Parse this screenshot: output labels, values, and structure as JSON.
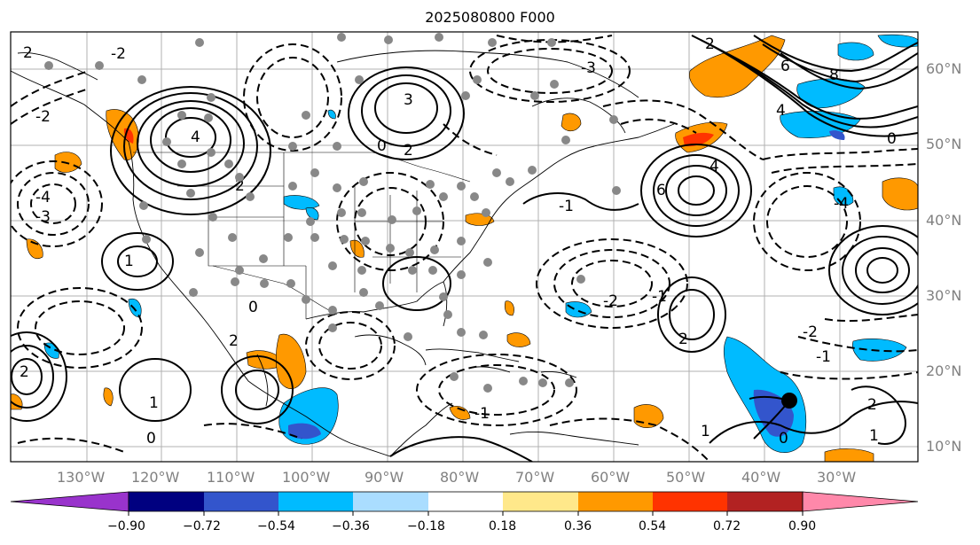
{
  "title": "2025080800 F000",
  "lat_labels": [
    "60°N",
    "50°N",
    "40°N",
    "30°N",
    "20°N",
    "10°N"
  ],
  "lon_labels": [
    "130°W",
    "120°W",
    "110°W",
    "100°W",
    "90°W",
    "80°W",
    "70°W",
    "60°W",
    "50°W",
    "40°W",
    "30°W"
  ],
  "colorbar": {
    "ticks": [
      "−0.90",
      "−0.72",
      "−0.54",
      "−0.36",
      "−0.18",
      "0.18",
      "0.36",
      "0.54",
      "0.72",
      "0.90"
    ],
    "colors": [
      "#9933cc",
      "#000080",
      "#3355cc",
      "#00bbff",
      "#aaddff",
      "#ffffff",
      "#ffe88a",
      "#ff9900",
      "#ff3300",
      "#b22222",
      "#ff88aa"
    ]
  },
  "contour_labels": [
    "2",
    "-2",
    "4",
    "6",
    "8",
    "-3",
    "3",
    "-1",
    "1",
    "0",
    "-4"
  ],
  "colors": {
    "positive": "#ff9900",
    "negative": "#00bbff",
    "contour": "#000000",
    "station": "#888888",
    "frame": "#000000"
  }
}
